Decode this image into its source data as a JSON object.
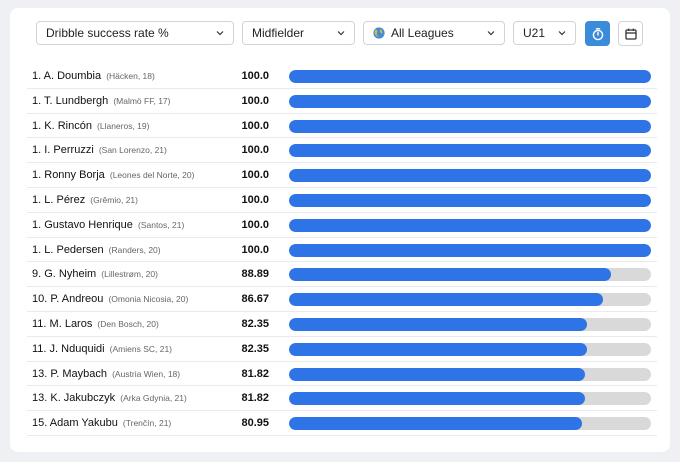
{
  "filters": {
    "metric": "Dribble success rate %",
    "position": "Midfielder",
    "league": "All Leagues",
    "age": "U21"
  },
  "icons": {
    "timer": "timer-icon",
    "calendar": "calendar-icon",
    "globe": "globe-icon",
    "chevron": "chevron-down-icon"
  },
  "colors": {
    "bar_fill": "#2f74e6",
    "bar_track": "#d9d9d9",
    "timer_button": "#3a8bd9"
  },
  "players": [
    {
      "rank": "1.",
      "name": "A. Doumbia",
      "club": "(Häcken, 18)",
      "value": "100.0",
      "pct": 100
    },
    {
      "rank": "1.",
      "name": "T. Lundbergh",
      "club": "(Malmö FF, 17)",
      "value": "100.0",
      "pct": 100
    },
    {
      "rank": "1.",
      "name": "K. Rincón",
      "club": "(Llaneros, 19)",
      "value": "100.0",
      "pct": 100
    },
    {
      "rank": "1.",
      "name": "I. Perruzzi",
      "club": "(San Lorenzo, 21)",
      "value": "100.0",
      "pct": 100
    },
    {
      "rank": "1.",
      "name": "Ronny Borja",
      "club": "(Leones del Norte, 20)",
      "value": "100.0",
      "pct": 100
    },
    {
      "rank": "1.",
      "name": "L. Pérez",
      "club": "(Grêmio, 21)",
      "value": "100.0",
      "pct": 100
    },
    {
      "rank": "1.",
      "name": "Gustavo Henrique",
      "club": "(Santos, 21)",
      "value": "100.0",
      "pct": 100
    },
    {
      "rank": "1.",
      "name": "L. Pedersen",
      "club": "(Randers, 20)",
      "value": "100.0",
      "pct": 100
    },
    {
      "rank": "9.",
      "name": "G. Nyheim",
      "club": "(Lillestrøm, 20)",
      "value": "88.89",
      "pct": 88.89
    },
    {
      "rank": "10.",
      "name": "P. Andreou",
      "club": "(Omonia Nicosia, 20)",
      "value": "86.67",
      "pct": 86.67
    },
    {
      "rank": "11.",
      "name": "M. Laros",
      "club": "(Den Bosch, 20)",
      "value": "82.35",
      "pct": 82.35
    },
    {
      "rank": "11.",
      "name": "J. Nduquidi",
      "club": "(Amiens SC, 21)",
      "value": "82.35",
      "pct": 82.35
    },
    {
      "rank": "13.",
      "name": "P. Maybach",
      "club": "(Austria Wien, 18)",
      "value": "81.82",
      "pct": 81.82
    },
    {
      "rank": "13.",
      "name": "K. Jakubczyk",
      "club": "(Arka Gdynia, 21)",
      "value": "81.82",
      "pct": 81.82
    },
    {
      "rank": "15.",
      "name": "Adam Yakubu",
      "club": "(Trenčín, 21)",
      "value": "80.95",
      "pct": 80.95
    }
  ]
}
